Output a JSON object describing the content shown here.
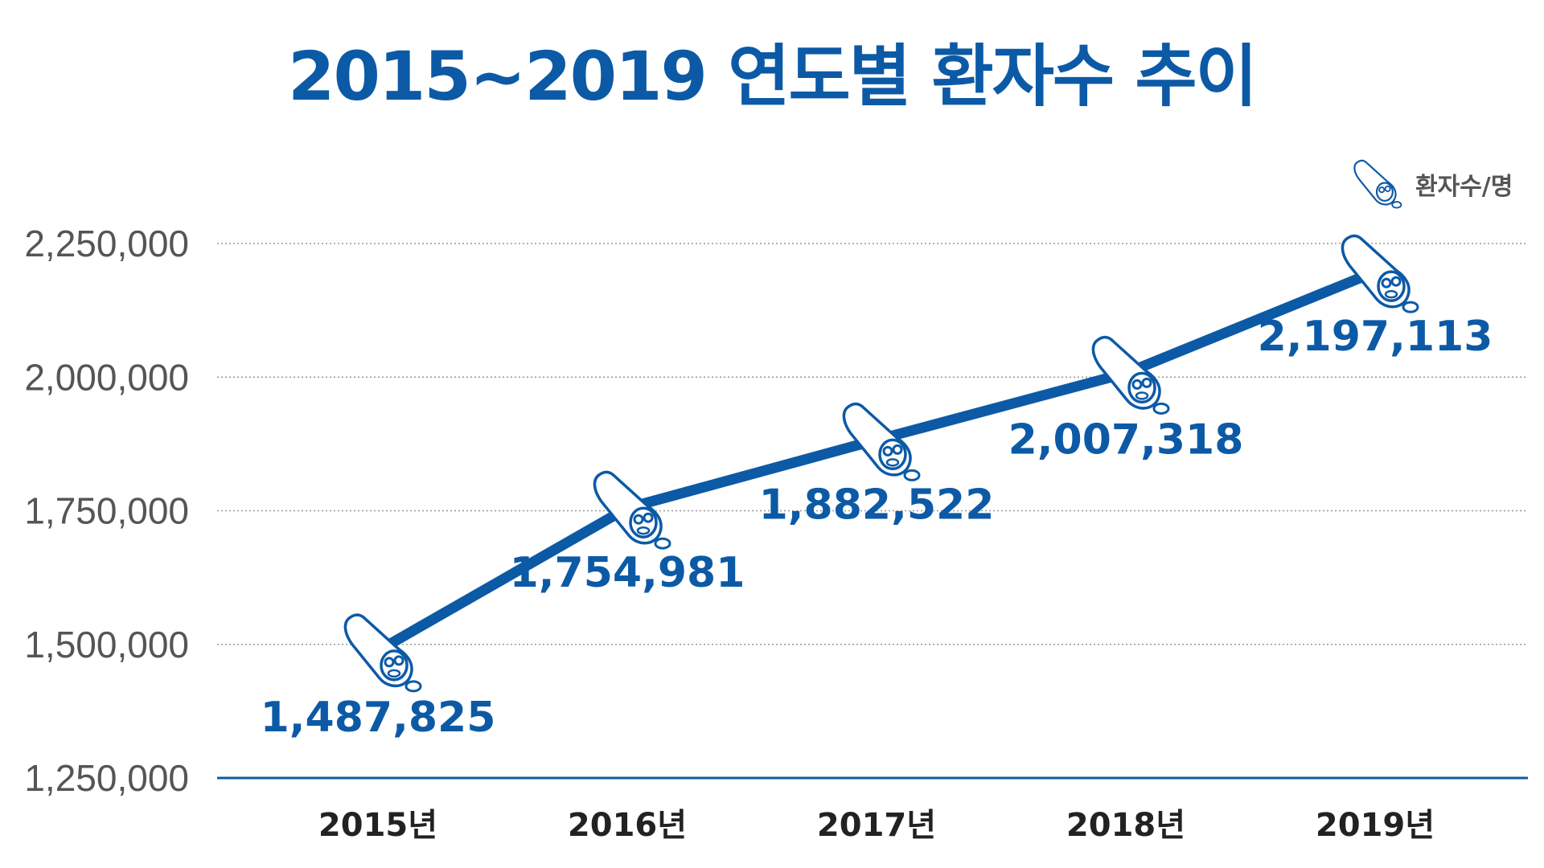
{
  "chart_data": {
    "type": "line",
    "title": "2015~2019 연도별 환자수 추이",
    "unit_label": "환자수/명",
    "categories": [
      "2015년",
      "2016년",
      "2017년",
      "2018년",
      "2019년"
    ],
    "values": [
      1487825,
      1754981,
      1882522,
      2007318,
      2197113
    ],
    "value_labels": [
      "1,487,825",
      "1,754,981",
      "1,882,522",
      "2,007,318",
      "2,197,113"
    ],
    "ylim": [
      1250000,
      2250000
    ],
    "yticks": [
      1250000,
      1500000,
      1750000,
      2000000,
      2250000
    ],
    "ytick_labels": [
      "1,250,000",
      "1,500,000",
      "1,750,000",
      "2,000,000",
      "2,250,000"
    ],
    "grid": true,
    "legend": "top-right",
    "colors": {
      "line": "#0c5aa6",
      "label": "#0c5aa6",
      "grid": "#999999",
      "axis": "#0c5aa6"
    },
    "marker_icon": "germ-capsule-icon"
  }
}
